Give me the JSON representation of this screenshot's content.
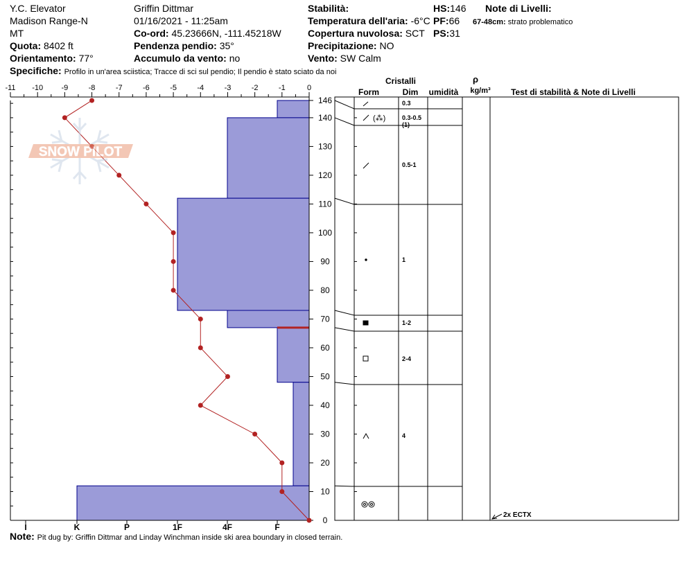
{
  "header": {
    "location": "Y.C. Elevator",
    "range": "Madison Range-N",
    "state": "MT",
    "elevation_label": "Quota:",
    "elevation_value": "8402 ft",
    "aspect_label": "Orientamento:",
    "aspect_value": "77°",
    "specifics_label": "Specifiche:",
    "specifics_value": "Profilo in un'area sciistica;  Tracce di sci sul pendio;  Il pendio è stato sciato da noi",
    "observer": "Griffin Dittmar",
    "datetime": "01/16/2021 - 11:25am",
    "coords_label": "Co-ord:",
    "coords_value": "45.23666N, -111.45218W",
    "slope_label": "Pendenza pendio:",
    "slope_value": "35°",
    "wind_loading_label": "Accumulo da vento:",
    "wind_loading_value": "no",
    "stability_label": "Stabilità:",
    "air_temp_label": "Temperatura dell'aria:",
    "air_temp_value": "-6°C",
    "cloud_label": "Copertura nuvolosa:",
    "cloud_value": "SCT",
    "precip_label": "Precipitazione:",
    "precip_value": "NO",
    "wind_label": "Vento:",
    "wind_value": "SW Calm",
    "hs_label": "HS:",
    "hs_value": "146",
    "pf_label": "PF:",
    "pf_value": "66",
    "ps_label": "PS:",
    "ps_value": "31",
    "layer_notes_label": "Note di Livelli:",
    "layer_note_range": "67-48cm:",
    "layer_note_text": "strato problematico"
  },
  "note": {
    "label": "Note:",
    "text": "Pit dug by: Griffin Dittmar and Linday Winchman inside ski area boundary in closed terrain."
  },
  "watermark": "SNOW PILOT",
  "table": {
    "crystals_header": "Cristalli",
    "form_header": "Form",
    "size_header": "Dim",
    "moisture_header": "umidità",
    "density_symbol": "ρ",
    "density_unit": "kg/m³",
    "tests_header": "Test di stabilità & Note di Livelli",
    "test_result": "2x ECTX"
  },
  "colors": {
    "hardness_fill": "#9b9bd8",
    "hardness_stroke": "#00008b",
    "temp_line": "#b22222",
    "problem_layer": "#b22222"
  },
  "chart_data": {
    "type": "snow_profile",
    "temperature_axis": {
      "ticks": [
        "-11",
        "-10",
        "-9",
        "-8",
        "-7",
        "-6",
        "-5",
        "-4",
        "-3",
        "-2",
        "-1",
        "0"
      ],
      "range": [
        -11,
        0
      ]
    },
    "hardness_axis": {
      "ticks": [
        "I",
        "K",
        "P",
        "1F",
        "4F",
        "F"
      ],
      "range_note": "fist on right (0), ice on left"
    },
    "height_axis": {
      "ticks": [
        "0",
        "10",
        "20",
        "30",
        "40",
        "50",
        "60",
        "70",
        "80",
        "90",
        "100",
        "110",
        "120",
        "130",
        "140",
        "146"
      ],
      "range": [
        0,
        146
      ]
    },
    "temperature_profile": [
      {
        "height": 146,
        "temp": -8
      },
      {
        "height": 140,
        "temp": -9
      },
      {
        "height": 130,
        "temp": -8
      },
      {
        "height": 120,
        "temp": -7
      },
      {
        "height": 110,
        "temp": -6
      },
      {
        "height": 100,
        "temp": -5
      },
      {
        "height": 90,
        "temp": -5
      },
      {
        "height": 80,
        "temp": -5
      },
      {
        "height": 70,
        "temp": -4
      },
      {
        "height": 60,
        "temp": -4
      },
      {
        "height": 50,
        "temp": -3
      },
      {
        "height": 40,
        "temp": -4
      },
      {
        "height": 30,
        "temp": -2
      },
      {
        "height": 20,
        "temp": -1
      },
      {
        "height": 10,
        "temp": -1
      },
      {
        "height": 0,
        "temp": 0
      }
    ],
    "hardness_layers": [
      {
        "top": 146,
        "bottom": 140,
        "hardness": "F"
      },
      {
        "top": 140,
        "bottom": 112,
        "hardness": "4F"
      },
      {
        "top": 112,
        "bottom": 73,
        "hardness": "1F"
      },
      {
        "top": 73,
        "bottom": 67,
        "hardness": "4F"
      },
      {
        "top": 67,
        "bottom": 48,
        "hardness": "F"
      },
      {
        "top": 48,
        "bottom": 12,
        "hardness": "F-"
      },
      {
        "top": 12,
        "bottom": 0,
        "hardness": "K"
      }
    ],
    "problem_layer_height": 67,
    "crystal_layers": [
      {
        "top": 146,
        "bottom": 140,
        "form": "decomposing",
        "size": "0.3"
      },
      {
        "top": 140,
        "bottom": 140,
        "form": "decomposing/precip",
        "size": "0.3-0.5",
        "size_extra": "(1)"
      },
      {
        "top": 140,
        "bottom": 112,
        "form": "decomposing",
        "size": "0.5-1"
      },
      {
        "top": 112,
        "bottom": 73,
        "form": "rounded",
        "size": "1"
      },
      {
        "top": 73,
        "bottom": 67,
        "form": "rounded facet",
        "size": "1-2"
      },
      {
        "top": 67,
        "bottom": 48,
        "form": "facet",
        "size": "2-4"
      },
      {
        "top": 48,
        "bottom": 12,
        "form": "depth hoar",
        "size": "4"
      },
      {
        "top": 12,
        "bottom": 0,
        "form": "melt-freeze",
        "size": ""
      }
    ]
  }
}
